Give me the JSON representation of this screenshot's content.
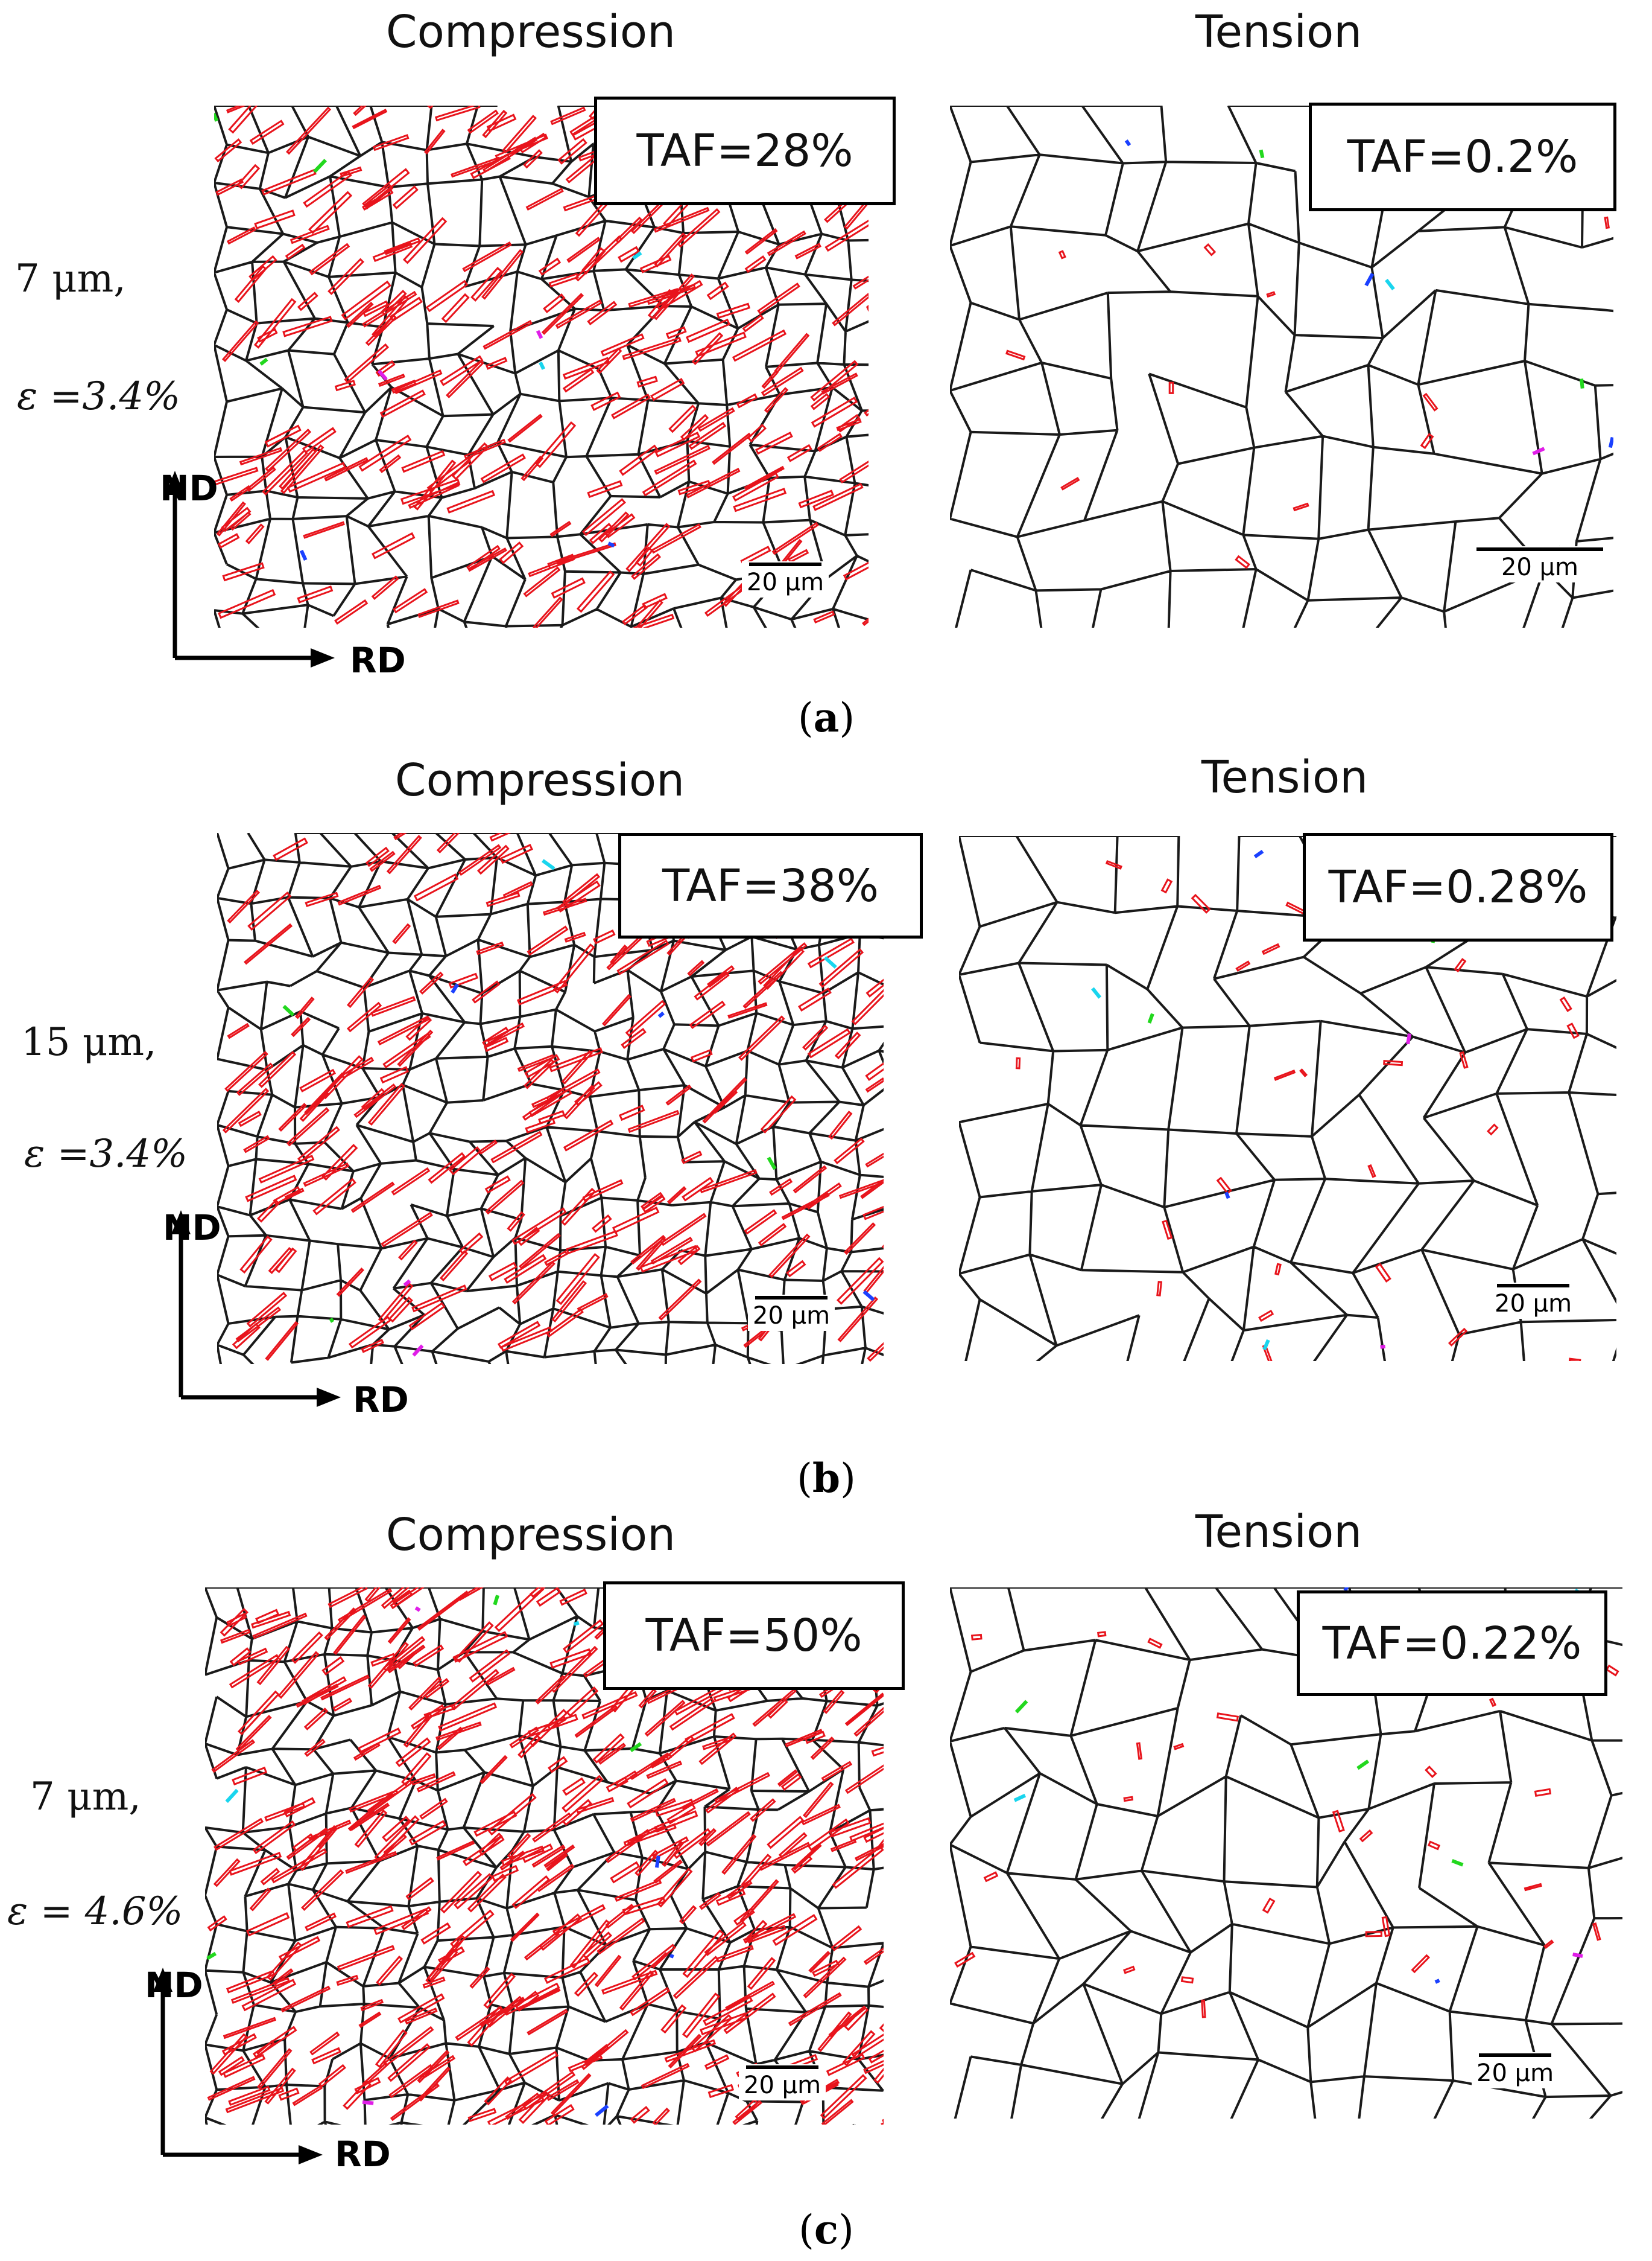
{
  "rows": [
    {
      "compression_title": "Compression",
      "tension_title": "Tension",
      "compression_taf": "TAF=28%",
      "tension_taf": "TAF=0.2%",
      "grain_size": "7 μm,",
      "strain": "ε =3.4%",
      "nd": "ND",
      "rd": "RD",
      "scale_left": "20 μm",
      "scale_right": "20 μm",
      "panel_open": "(",
      "panel_letter": "a",
      "panel_close": ")"
    },
    {
      "compression_title": "Compression",
      "tension_title": "Tension",
      "compression_taf": "TAF=38%",
      "tension_taf": "TAF=0.28%",
      "grain_size": "15 μm,",
      "strain": "ε =3.4%",
      "nd": "ND",
      "rd": "RD",
      "scale_left": "20 μm",
      "scale_right": "20 μm",
      "panel_open": "(",
      "panel_letter": "b",
      "panel_close": ")"
    },
    {
      "compression_title": "Compression",
      "tension_title": "Tension",
      "compression_taf": "TAF=50%",
      "tension_taf": "TAF=0.22%",
      "grain_size": "7 μm,",
      "strain": "ε = 4.6%",
      "nd": "ND",
      "rd": "RD",
      "scale_left": "20 μm",
      "scale_right": "20 μm",
      "panel_open": "(",
      "panel_letter": "c",
      "panel_close": ")"
    }
  ],
  "colors": {
    "grain_boundary": "#1a1a1a",
    "twin_boundary": "#e8141c",
    "other_boundaries": [
      "#1a40ff",
      "#22d81e",
      "#e01ee8",
      "#19d5ee"
    ]
  }
}
